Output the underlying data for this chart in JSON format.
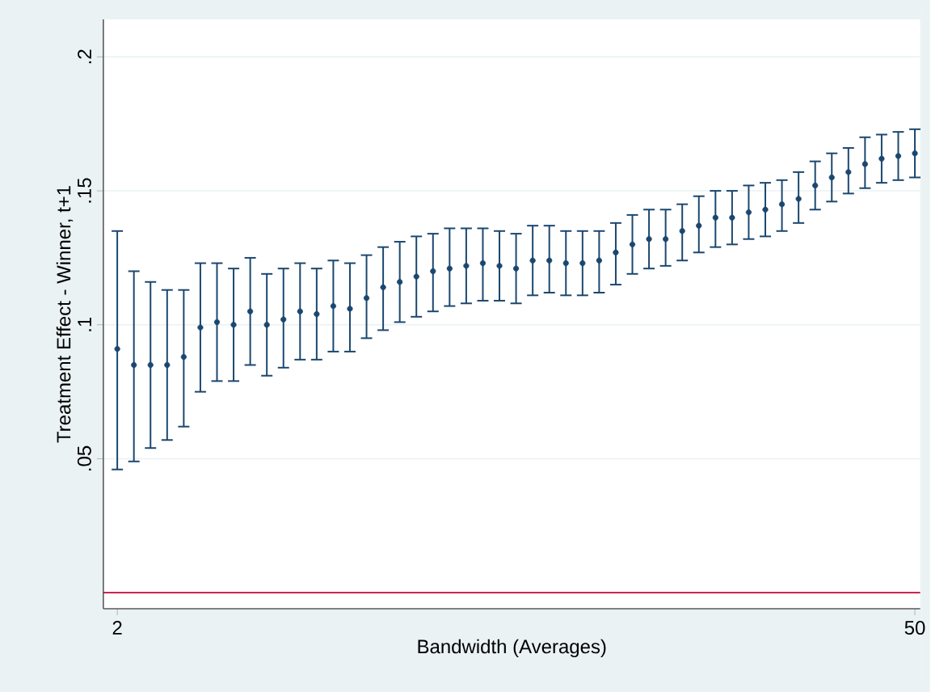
{
  "chart_data": {
    "type": "scatter",
    "xlabel": "Bandwidth (Averages)",
    "ylabel": "Treatment Effect - Winner, t+1",
    "x": [
      2,
      3,
      4,
      5,
      6,
      7,
      8,
      9,
      10,
      11,
      12,
      13,
      14,
      15,
      16,
      17,
      18,
      19,
      20,
      21,
      22,
      23,
      24,
      25,
      26,
      27,
      28,
      29,
      30,
      31,
      32,
      33,
      34,
      35,
      36,
      37,
      38,
      39,
      40,
      41,
      42,
      43,
      44,
      45,
      46,
      47,
      48,
      49,
      50
    ],
    "series": [
      {
        "color": "#1a476f",
        "values": [
          0.091,
          0.085,
          0.085,
          0.085,
          0.088,
          0.099,
          0.101,
          0.1,
          0.105,
          0.1,
          0.102,
          0.105,
          0.104,
          0.107,
          0.106,
          0.11,
          0.114,
          0.116,
          0.118,
          0.12,
          0.121,
          0.122,
          0.123,
          0.122,
          0.121,
          0.124,
          0.124,
          0.123,
          0.123,
          0.124,
          0.127,
          0.13,
          0.132,
          0.132,
          0.135,
          0.137,
          0.14,
          0.14,
          0.142,
          0.143,
          0.145,
          0.147,
          0.152,
          0.155,
          0.157,
          0.16,
          0.162,
          0.163,
          0.164
        ],
        "errors": [
          [
            0.046,
            0.135
          ],
          [
            0.049,
            0.12
          ],
          [
            0.054,
            0.116
          ],
          [
            0.057,
            0.113
          ],
          [
            0.062,
            0.113
          ],
          [
            0.075,
            0.123
          ],
          [
            0.079,
            0.123
          ],
          [
            0.079,
            0.121
          ],
          [
            0.085,
            0.125
          ],
          [
            0.081,
            0.119
          ],
          [
            0.084,
            0.121
          ],
          [
            0.087,
            0.123
          ],
          [
            0.087,
            0.121
          ],
          [
            0.09,
            0.124
          ],
          [
            0.09,
            0.123
          ],
          [
            0.095,
            0.126
          ],
          [
            0.098,
            0.129
          ],
          [
            0.101,
            0.131
          ],
          [
            0.103,
            0.133
          ],
          [
            0.105,
            0.134
          ],
          [
            0.107,
            0.136
          ],
          [
            0.108,
            0.136
          ],
          [
            0.109,
            0.136
          ],
          [
            0.109,
            0.135
          ],
          [
            0.108,
            0.134
          ],
          [
            0.111,
            0.137
          ],
          [
            0.112,
            0.137
          ],
          [
            0.111,
            0.135
          ],
          [
            0.111,
            0.135
          ],
          [
            0.112,
            0.135
          ],
          [
            0.115,
            0.138
          ],
          [
            0.119,
            0.141
          ],
          [
            0.121,
            0.143
          ],
          [
            0.122,
            0.143
          ],
          [
            0.124,
            0.145
          ],
          [
            0.127,
            0.148
          ],
          [
            0.129,
            0.15
          ],
          [
            0.13,
            0.15
          ],
          [
            0.132,
            0.152
          ],
          [
            0.133,
            0.153
          ],
          [
            0.135,
            0.154
          ],
          [
            0.138,
            0.157
          ],
          [
            0.143,
            0.161
          ],
          [
            0.146,
            0.164
          ],
          [
            0.149,
            0.166
          ],
          [
            0.151,
            0.17
          ],
          [
            0.153,
            0.171
          ],
          [
            0.154,
            0.172
          ],
          [
            0.155,
            0.173
          ]
        ]
      }
    ],
    "marker": "circle",
    "xlim": [
      1.16,
      50.32
    ],
    "xticks": [
      2,
      50
    ],
    "ylim": [
      -0.006,
      0.214
    ],
    "yticks": [
      {
        "value": 0.05,
        "label": ".05"
      },
      {
        "value": 0.1,
        "label": ".1"
      },
      {
        "value": 0.15,
        "label": ".15"
      },
      {
        "value": 0.2,
        "label": ".2"
      }
    ],
    "grid": "y",
    "ref_lines": [
      {
        "axis": "y",
        "value": 0,
        "color": "#c10534"
      }
    ]
  }
}
